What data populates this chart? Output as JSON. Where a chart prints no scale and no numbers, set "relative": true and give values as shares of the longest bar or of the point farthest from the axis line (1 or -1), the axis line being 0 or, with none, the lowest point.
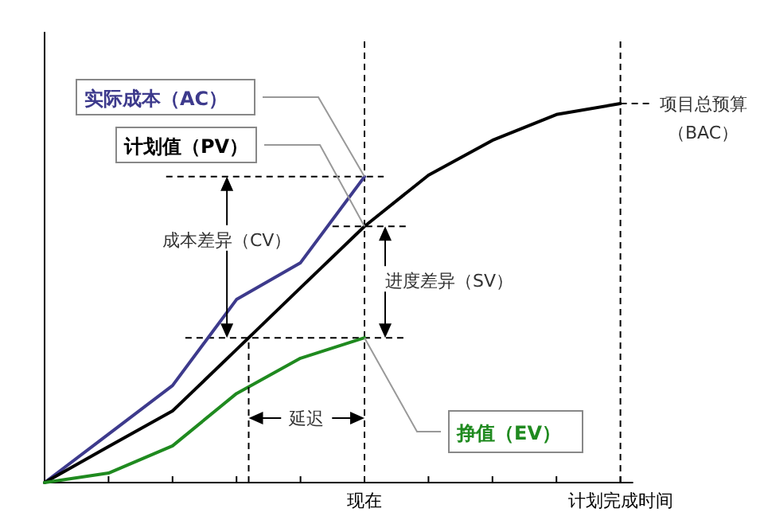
{
  "chart_data": {
    "type": "line",
    "relative": true,
    "marker": "none",
    "line_style": "solid",
    "tick_labels": "x",
    "categories": [
      null,
      null,
      null,
      null,
      null,
      "现在",
      null,
      null,
      null,
      "计划完成时间"
    ],
    "series": [
      {
        "name": "实际成本（AC）",
        "color": "#3d3a8c",
        "values": [
          0,
          0.128,
          0.256,
          0.483,
          0.58,
          0.807,
          null,
          null,
          null,
          null
        ]
      },
      {
        "name": "计划值（PV）",
        "color": "#000000",
        "values": [
          0,
          0.095,
          0.189,
          0.351,
          0.514,
          0.676,
          0.811,
          0.903,
          0.971,
          1
        ]
      },
      {
        "name": "挣值（EV）",
        "color": "#1f8a1f",
        "values": [
          0,
          0.025,
          0.097,
          0.235,
          0.328,
          0.382,
          null,
          null,
          null,
          null
        ]
      }
    ],
    "ref_lines": [
      {
        "axis": "y",
        "value": 0.807,
        "line_style": "dashed",
        "color": "#000000"
      },
      {
        "axis": "y",
        "value": 0.676,
        "line_style": "dashed",
        "color": "#000000"
      },
      {
        "axis": "y",
        "value": 0.382,
        "line_style": "dashed",
        "color": "#000000"
      },
      {
        "axis": "x",
        "value": "现在",
        "line_style": "dashed",
        "color": "#000000"
      },
      {
        "axis": "x",
        "value": "计划完成时间",
        "line_style": "dashed",
        "color": "#000000"
      }
    ],
    "annotations": [
      "成本差异（CV）",
      "进度差异（SV）",
      "延迟",
      "项目总预算",
      "（BAC）"
    ]
  }
}
